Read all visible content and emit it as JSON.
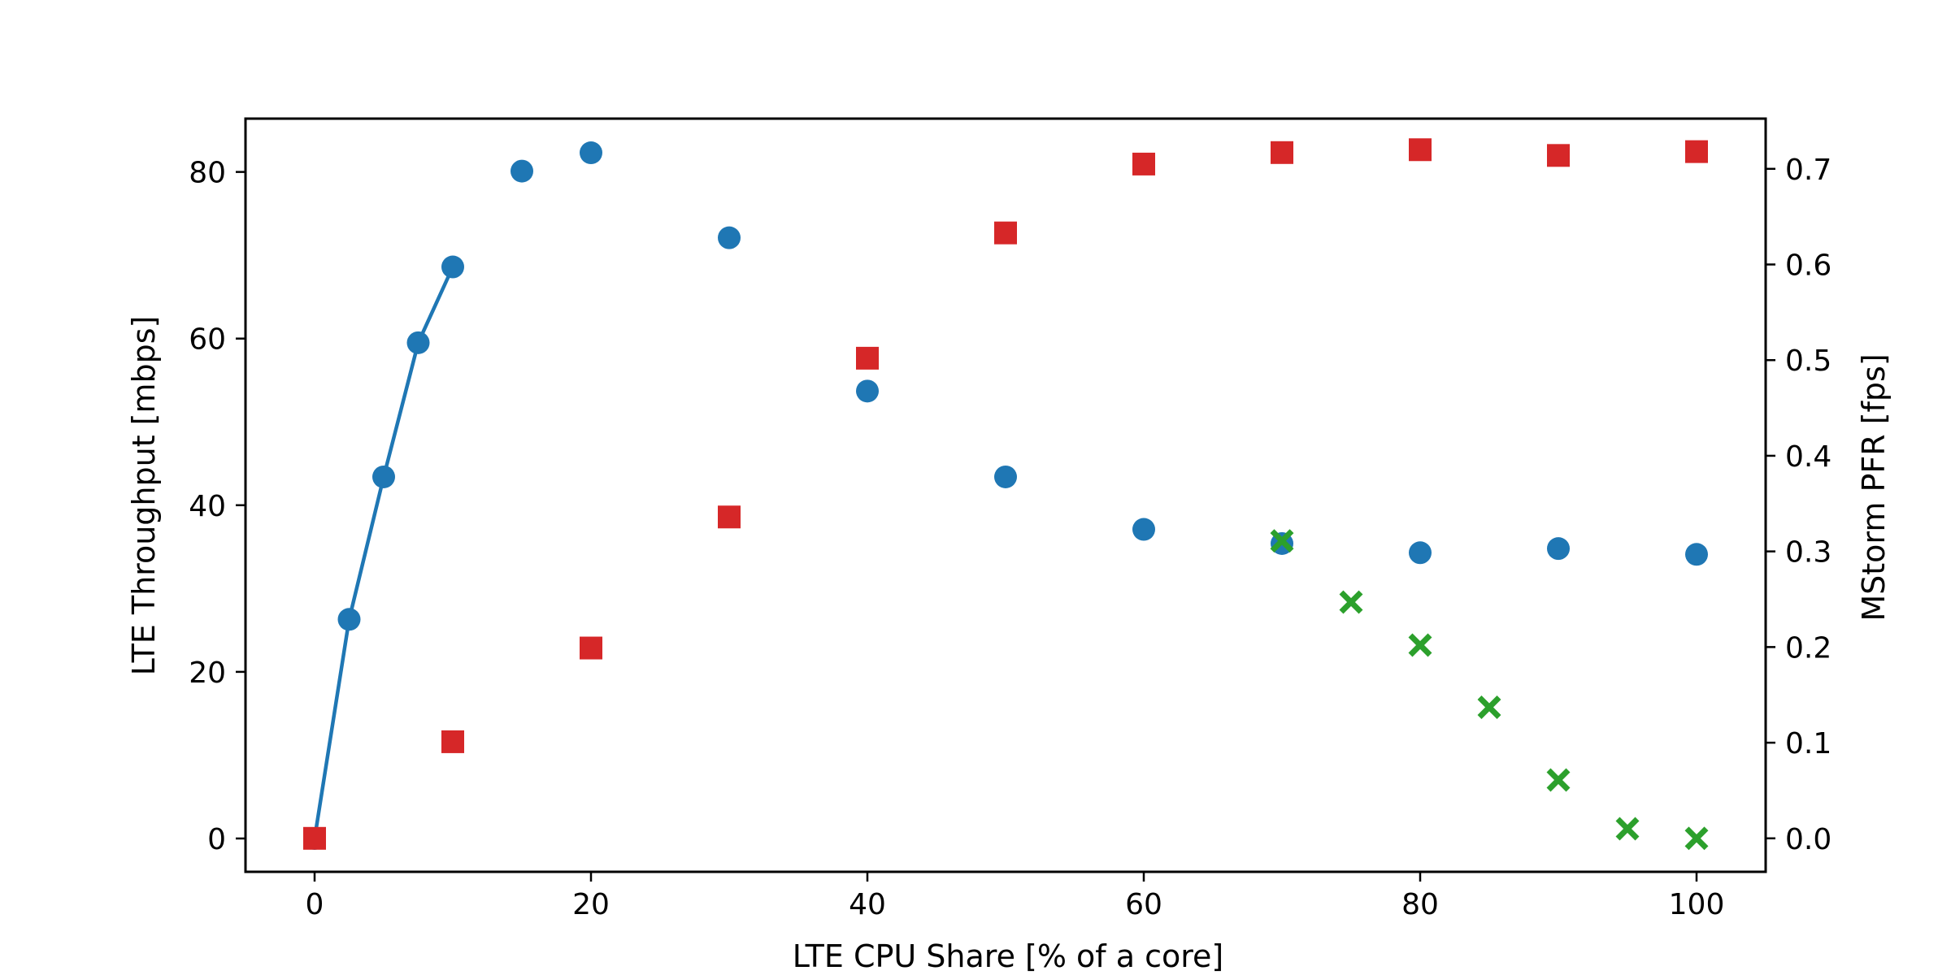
{
  "chart_data": {
    "type": "scatter",
    "title": "",
    "xlabel": "LTE CPU Share [% of a core]",
    "ylabel": "LTE Throughput [mbps]",
    "y2label": "MStorm PFR [fps]",
    "xlim": [
      -5,
      105
    ],
    "ylim": [
      -4,
      86.4
    ],
    "y2lim": [
      -0.035,
      0.7525
    ],
    "xticks": [
      0,
      20,
      40,
      60,
      80,
      100
    ],
    "yticks": [
      0,
      20,
      40,
      60,
      80
    ],
    "y2ticks": [
      0.0,
      0.1,
      0.2,
      0.3,
      0.4,
      0.5,
      0.6,
      0.7
    ],
    "grid": false,
    "legend": "none",
    "series": [
      {
        "axis": "left",
        "marker": "circle",
        "color": "#1f77b4",
        "x": [
          0,
          2.5,
          5,
          7.5,
          10,
          15,
          20,
          30,
          40,
          50,
          60,
          70,
          80,
          90,
          100
        ],
        "values": [
          0,
          26.3,
          43.4,
          59.5,
          68.6,
          80.1,
          82.3,
          72.1,
          53.7,
          43.4,
          37.1,
          35.4,
          34.3,
          34.8,
          34.1
        ],
        "line_x": [
          0,
          2.5,
          5,
          7.5,
          10
        ],
        "line_values": [
          0,
          26.3,
          43.4,
          59.5,
          68.6
        ]
      },
      {
        "axis": "right",
        "marker": "square",
        "color": "#d62728",
        "x": [
          0,
          10,
          20,
          30,
          40,
          50,
          60,
          70,
          80,
          90,
          100
        ],
        "values": [
          0.0,
          0.101,
          0.199,
          0.336,
          0.502,
          0.633,
          0.705,
          0.717,
          0.72,
          0.714,
          0.718
        ]
      },
      {
        "axis": "right",
        "marker": "x",
        "color": "#2ca02c",
        "x": [
          70,
          75,
          80,
          85,
          90,
          95,
          100
        ],
        "values": [
          0.311,
          0.247,
          0.202,
          0.137,
          0.061,
          0.01,
          0.0
        ]
      }
    ]
  }
}
